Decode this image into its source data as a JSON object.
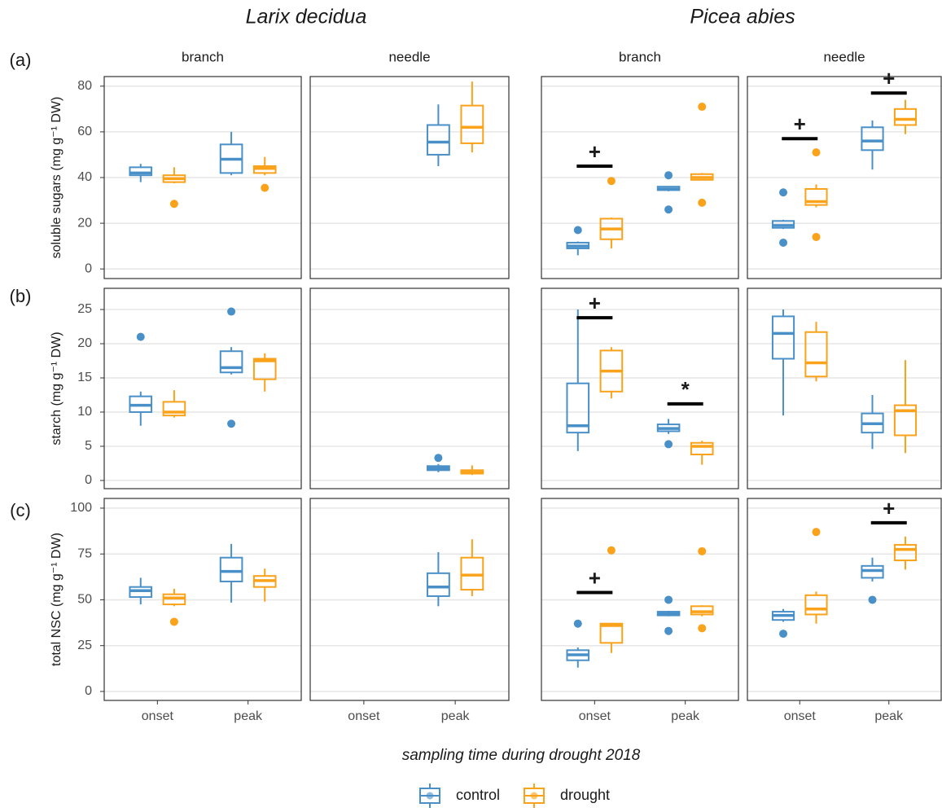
{
  "species": [
    "Larix decidua",
    "Picea abies"
  ],
  "tissues": [
    "branch",
    "needle",
    "branch",
    "needle"
  ],
  "categories": [
    "onset",
    "peak"
  ],
  "xlabel": "sampling time during drought 2018",
  "legend": [
    {
      "name": "control",
      "color": "#4a90c8"
    },
    {
      "name": "drought",
      "color": "#f9a21a"
    }
  ],
  "chart_data": [
    {
      "type": "box",
      "tag": "(a)",
      "ylabel": "soluble sugars (mg g⁻¹ DW)",
      "ylim": [
        -4.2,
        84.2
      ],
      "yticks": [
        0,
        20,
        40,
        60,
        80
      ],
      "grid": true,
      "panels": [
        {
          "boxes": [
            [
              {
                "low": 38,
                "q1": 41,
                "median": 42,
                "q3": 44.5,
                "high": 46,
                "outliers": []
              },
              {
                "low": 41,
                "q1": 42,
                "median": 48,
                "q3": 54.5,
                "high": 60,
                "outliers": []
              }
            ],
            [
              {
                "low": 37.5,
                "q1": 38,
                "median": 39.5,
                "q3": 41,
                "high": 44.5,
                "outliers": [
                  28.5
                ]
              },
              {
                "low": 41,
                "q1": 42,
                "median": 44,
                "q3": 45,
                "high": 49,
                "outliers": [
                  35.5
                ]
              }
            ]
          ],
          "annotations": []
        },
        {
          "boxes": [
            [
              null,
              {
                "low": 45,
                "q1": 50,
                "median": 55.5,
                "q3": 63,
                "high": 72,
                "outliers": []
              }
            ],
            [
              null,
              {
                "low": 51,
                "q1": 55,
                "median": 62,
                "q3": 71.5,
                "high": 82,
                "outliers": []
              }
            ]
          ],
          "annotations": []
        },
        {
          "boxes": [
            [
              {
                "low": 6,
                "q1": 9,
                "median": 10,
                "q3": 11.5,
                "high": 12,
                "outliers": [
                  17
                ]
              },
              {
                "low": 34,
                "q1": 34.5,
                "median": 35,
                "q3": 36,
                "high": 36,
                "outliers": [
                  26,
                  41
                ]
              }
            ],
            [
              {
                "low": 9,
                "q1": 13,
                "median": 17.5,
                "q3": 22,
                "high": 22.5,
                "outliers": [
                  38.5
                ]
              },
              {
                "low": 39,
                "q1": 39,
                "median": 40,
                "q3": 41.5,
                "high": 42,
                "outliers": [
                  29,
                  71
                ]
              }
            ]
          ],
          "annotations": [
            {
              "category": 0,
              "y": 45,
              "label": "+"
            }
          ]
        },
        {
          "boxes": [
            [
              {
                "low": 17.5,
                "q1": 18,
                "median": 19,
                "q3": 21,
                "high": 21.5,
                "outliers": [
                  11.5,
                  33.5
                ]
              },
              {
                "low": 43.5,
                "q1": 52,
                "median": 56,
                "q3": 62,
                "high": 65,
                "outliers": []
              }
            ],
            [
              {
                "low": 27,
                "q1": 28,
                "median": 29.5,
                "q3": 35,
                "high": 37,
                "outliers": [
                  14,
                  51
                ]
              },
              {
                "low": 59,
                "q1": 63,
                "median": 65.5,
                "q3": 70,
                "high": 74,
                "outliers": []
              }
            ]
          ],
          "annotations": [
            {
              "category": 0,
              "y": 57,
              "label": "+"
            },
            {
              "category": 1,
              "y": 77,
              "label": "+"
            }
          ]
        }
      ]
    },
    {
      "type": "box",
      "tag": "(b)",
      "ylabel": "starch (mg g⁻¹ DW)",
      "ylim": [
        -1.2,
        28.1
      ],
      "yticks": [
        0,
        5,
        10,
        15,
        20,
        25
      ],
      "grid": true,
      "panels": [
        {
          "boxes": [
            [
              {
                "low": 8,
                "q1": 10,
                "median": 11,
                "q3": 12.3,
                "high": 13,
                "outliers": [
                  21
                ]
              },
              {
                "low": 15.5,
                "q1": 15.8,
                "median": 16.5,
                "q3": 18.9,
                "high": 19.5,
                "outliers": [
                  8.3,
                  24.7
                ]
              }
            ],
            [
              {
                "low": 9.2,
                "q1": 9.5,
                "median": 10,
                "q3": 11.5,
                "high": 13.2,
                "outliers": []
              },
              {
                "low": 13,
                "q1": 14.8,
                "median": 17.5,
                "q3": 17.8,
                "high": 18.6,
                "outliers": []
              }
            ]
          ],
          "annotations": []
        },
        {
          "boxes": [
            [
              null,
              {
                "low": 1.2,
                "q1": 1.5,
                "median": 1.8,
                "q3": 2.1,
                "high": 2.4,
                "outliers": [
                  3.3
                ]
              }
            ],
            [
              null,
              {
                "low": 0.8,
                "q1": 1,
                "median": 1.2,
                "q3": 1.5,
                "high": 2.2,
                "outliers": []
              }
            ]
          ],
          "annotations": []
        },
        {
          "boxes": [
            [
              {
                "low": 4.3,
                "q1": 7,
                "median": 8,
                "q3": 14.2,
                "high": 25,
                "outliers": []
              },
              {
                "low": 6.8,
                "q1": 7.2,
                "median": 7.6,
                "q3": 8.2,
                "high": 9,
                "outliers": [
                  5.3
                ]
              }
            ],
            [
              {
                "low": 12,
                "q1": 13,
                "median": 16,
                "q3": 19,
                "high": 19.5,
                "outliers": []
              },
              {
                "low": 2.3,
                "q1": 3.8,
                "median": 5,
                "q3": 5.5,
                "high": 5.8,
                "outliers": []
              }
            ]
          ],
          "annotations": [
            {
              "category": 0,
              "y": 23.8,
              "label": "+"
            },
            {
              "category": 1,
              "y": 11.2,
              "label": "*"
            }
          ]
        },
        {
          "boxes": [
            [
              {
                "low": 9.5,
                "q1": 17.8,
                "median": 21.5,
                "q3": 24,
                "high": 25,
                "outliers": []
              },
              {
                "low": 4.6,
                "q1": 7,
                "median": 8.3,
                "q3": 9.8,
                "high": 12.5,
                "outliers": []
              }
            ],
            [
              {
                "low": 14.5,
                "q1": 15.2,
                "median": 17.2,
                "q3": 21.7,
                "high": 23.2,
                "outliers": []
              },
              {
                "low": 4,
                "q1": 6.6,
                "median": 10.2,
                "q3": 11,
                "high": 17.6,
                "outliers": []
              }
            ]
          ],
          "annotations": []
        }
      ]
    },
    {
      "type": "box",
      "tag": "(c)",
      "ylabel": "total NSC (mg g⁻¹ DW)",
      "ylim": [
        -4.9,
        105.3
      ],
      "yticks": [
        0,
        25,
        50,
        75,
        100
      ],
      "grid": true,
      "panels": [
        {
          "boxes": [
            [
              {
                "low": 47.5,
                "q1": 51.5,
                "median": 55,
                "q3": 57,
                "high": 62,
                "outliers": []
              },
              {
                "low": 48.5,
                "q1": 60,
                "median": 65.5,
                "q3": 73,
                "high": 80.5,
                "outliers": []
              }
            ],
            [
              {
                "low": 46.5,
                "q1": 47.5,
                "median": 51,
                "q3": 53,
                "high": 56,
                "outliers": [
                  38
                ]
              },
              {
                "low": 49,
                "q1": 57,
                "median": 60.5,
                "q3": 63,
                "high": 67,
                "outliers": []
              }
            ]
          ],
          "annotations": []
        },
        {
          "boxes": [
            [
              null,
              {
                "low": 46.5,
                "q1": 52,
                "median": 57,
                "q3": 64.5,
                "high": 76,
                "outliers": []
              }
            ],
            [
              null,
              {
                "low": 52,
                "q1": 55.5,
                "median": 63.5,
                "q3": 73,
                "high": 83,
                "outliers": []
              }
            ]
          ],
          "annotations": []
        },
        {
          "boxes": [
            [
              {
                "low": 13,
                "q1": 17,
                "median": 20,
                "q3": 22.5,
                "high": 24,
                "outliers": [
                  37
                ]
              },
              {
                "low": 41,
                "q1": 41.5,
                "median": 42.5,
                "q3": 43.5,
                "high": 44,
                "outliers": [
                  33,
                  50
                ]
              }
            ],
            [
              {
                "low": 21,
                "q1": 26.5,
                "median": 36,
                "q3": 37,
                "high": 37,
                "outliers": [
                  77
                ]
              },
              {
                "low": 41,
                "q1": 42,
                "median": 43.5,
                "q3": 46.5,
                "high": 47,
                "outliers": [
                  34.5,
                  76.5
                ]
              }
            ]
          ],
          "annotations": [
            {
              "category": 0,
              "y": 54,
              "label": "+"
            }
          ]
        },
        {
          "boxes": [
            [
              {
                "low": 38,
                "q1": 39,
                "median": 41.5,
                "q3": 43.5,
                "high": 45,
                "outliers": [
                  31.5
                ]
              },
              {
                "low": 60,
                "q1": 62,
                "median": 66,
                "q3": 68.5,
                "high": 73,
                "outliers": [
                  50
                ]
              }
            ],
            [
              {
                "low": 37,
                "q1": 42,
                "median": 45,
                "q3": 52.5,
                "high": 54.5,
                "outliers": [
                  87
                ]
              },
              {
                "low": 66.5,
                "q1": 71.5,
                "median": 77.5,
                "q3": 80,
                "high": 84.5,
                "outliers": []
              }
            ]
          ],
          "annotations": [
            {
              "category": 1,
              "y": 92,
              "label": "+"
            }
          ]
        }
      ]
    }
  ]
}
